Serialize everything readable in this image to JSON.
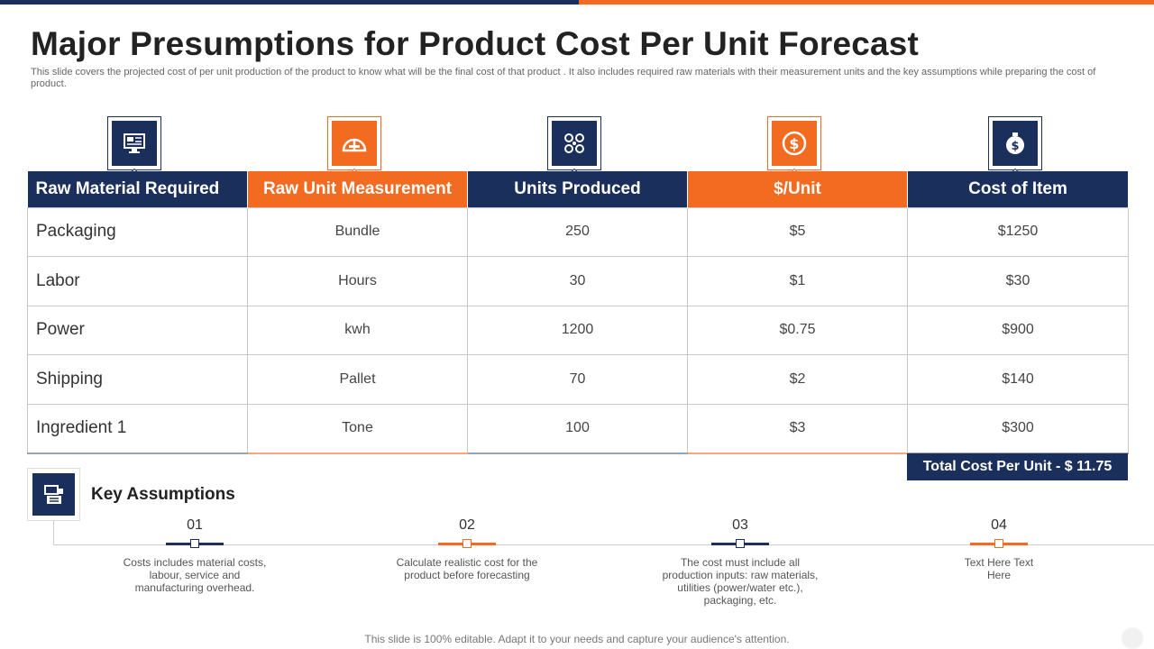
{
  "slide": {
    "title": "Major Presumptions for Product Cost Per Unit Forecast",
    "subtitle": "This slide covers the projected cost of per unit production of the product to know what will be the final cost of that product . It also includes required raw materials with their measurement units and the key assumptions while preparing the cost of product.",
    "footer": "This slide is 100% editable. Adapt it to your needs and capture your audience's attention."
  },
  "colors": {
    "navy": "#1b2f5c",
    "orange": "#f26b21"
  },
  "table": {
    "icons": [
      "monitor-icon",
      "gauge-icon",
      "network-nodes-icon",
      "dollar-coin-icon",
      "money-bag-icon"
    ],
    "headers": [
      "Raw Material Required",
      "Raw Unit Measurement",
      "Units Produced",
      "$/Unit",
      "Cost of Item"
    ],
    "rows": [
      [
        "Packaging",
        "Bundle",
        "250",
        "$5",
        "$1250"
      ],
      [
        "Labor",
        "Hours",
        "30",
        "$1",
        "$30"
      ],
      [
        "Power",
        "kwh",
        "1200",
        "$0.75",
        "$900"
      ],
      [
        "Shipping",
        "Pallet",
        "70",
        "$2",
        "$140"
      ],
      [
        "Ingredient 1",
        "Tone",
        "100",
        "$3",
        "$300"
      ]
    ],
    "total": "Total Cost Per Unit - $ 11.75"
  },
  "assumptions": {
    "icon": "register-icon",
    "title": "Key Assumptions",
    "items": [
      {
        "num": "01",
        "text": "Costs includes material costs, labour, service and manufacturing overhead."
      },
      {
        "num": "02",
        "text": "Calculate realistic cost for the product before forecasting"
      },
      {
        "num": "03",
        "text": "The cost must include all production inputs: raw materials, utilities (power/water etc.), packaging, etc."
      },
      {
        "num": "04",
        "text": "Text Here Text Here"
      }
    ]
  }
}
